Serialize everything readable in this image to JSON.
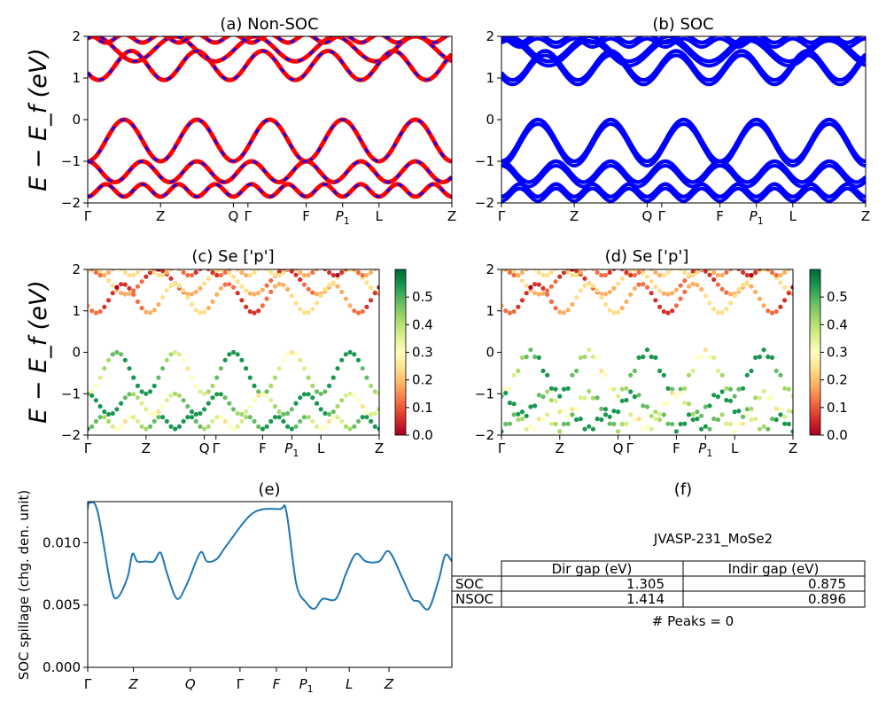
{
  "figure": {
    "ylabel_bands": "E − E_f (eV)",
    "ylabel_spillage": "SOC spillage (chg. den. unit)"
  },
  "chart_data": [
    {
      "id": "a",
      "type": "line",
      "title": "(a) Non-SOC",
      "xtick_labels": [
        "Γ",
        "Z",
        "Q",
        "Γ",
        "F",
        "P1",
        "L",
        "Z"
      ],
      "x": [
        0,
        2,
        4,
        4.4,
        6,
        7,
        8,
        10
      ],
      "ylim": [
        -2,
        2
      ],
      "yticks": [
        -2,
        -1,
        0,
        1,
        2
      ],
      "series_style": {
        "fill_colors": [
          "#ff0000",
          "#0000ff"
        ],
        "dashed": true
      }
    },
    {
      "id": "b",
      "type": "line",
      "title": "(b) SOC",
      "xtick_labels": [
        "Γ",
        "Z",
        "Q",
        "Γ",
        "F",
        "P1",
        "L",
        "Z"
      ],
      "ylim": [
        -2,
        2
      ],
      "yticks": [
        -2,
        -1,
        0,
        1,
        2
      ],
      "series_style": {
        "color": "#0000ff",
        "split": true
      }
    },
    {
      "id": "c",
      "type": "scatter",
      "title": "(c)  Se ['p']",
      "xtick_labels": [
        "Γ",
        "Z",
        "Q",
        "Γ",
        "F",
        "P1",
        "L",
        "Z"
      ],
      "ylim": [
        -2,
        2
      ],
      "yticks": [
        -2,
        -1,
        0,
        1,
        2
      ],
      "colorbar": {
        "cmap": "RdYlGn",
        "min": 0.0,
        "max": 0.6,
        "ticks": [
          "0.0",
          "0.1",
          "0.2",
          "0.3",
          "0.4",
          "0.5"
        ]
      }
    },
    {
      "id": "d",
      "type": "scatter",
      "title": "(d) Se ['p']",
      "xtick_labels": [
        "Γ",
        "Z",
        "Q",
        "Γ",
        "F",
        "P1",
        "L",
        "Z"
      ],
      "ylim": [
        -2,
        2
      ],
      "yticks": [
        -2,
        -1,
        0,
        1,
        2
      ],
      "colorbar": {
        "cmap": "RdYlGn",
        "min": 0.0,
        "max": 0.6,
        "ticks": [
          "0.0",
          "0.1",
          "0.2",
          "0.3",
          "0.4",
          "0.5"
        ]
      }
    },
    {
      "id": "e",
      "type": "line",
      "title": "(e)",
      "ylabel": "SOC spillage (chg. den. unit)",
      "ylim": [
        0,
        0.0133
      ],
      "yticks": [
        "0.000",
        "0.005",
        "0.010"
      ],
      "xtick_labels": [
        "Γ",
        "Z",
        "Q",
        "Γ",
        "F",
        "P1",
        "L",
        "Z"
      ],
      "color": "#1f77b4",
      "x": [
        0,
        0.05,
        0.3,
        0.7,
        0.9,
        1.2,
        1.35,
        1.5,
        1.75,
        2.0,
        2.2,
        2.4,
        2.7,
        3.0,
        3.4,
        3.6,
        3.9,
        4.2,
        5.0,
        5.8,
        6.0,
        6.3,
        6.6,
        6.85,
        7.1,
        7.5,
        7.8,
        8.1,
        8.4,
        8.8,
        9.1,
        9.5,
        9.8,
        10.0,
        10.3,
        10.6,
        10.8,
        11.0
      ],
      "y": [
        0.0127,
        0.0132,
        0.0125,
        0.0065,
        0.0056,
        0.0072,
        0.0091,
        0.0085,
        0.0085,
        0.0085,
        0.0092,
        0.0075,
        0.0055,
        0.0067,
        0.0092,
        0.0085,
        0.0087,
        0.0098,
        0.0124,
        0.0127,
        0.0125,
        0.0067,
        0.0052,
        0.0047,
        0.0055,
        0.0055,
        0.0075,
        0.0091,
        0.0085,
        0.0085,
        0.0093,
        0.0072,
        0.0055,
        0.0053,
        0.0047,
        0.007,
        0.009,
        0.0085
      ],
      "xlim": [
        0,
        11.0
      ]
    },
    {
      "id": "f",
      "type": "table",
      "title": "(f)",
      "material": "JVASP-231_MoSe2",
      "columns": [
        "Dir gap (eV)",
        "Indir gap (eV)"
      ],
      "rows": [
        {
          "label": "SOC",
          "values": [
            "1.305",
            "0.875"
          ]
        },
        {
          "label": "NSOC",
          "values": [
            "1.414",
            "0.896"
          ]
        }
      ],
      "peaks_text": "# Peaks = 0"
    }
  ]
}
